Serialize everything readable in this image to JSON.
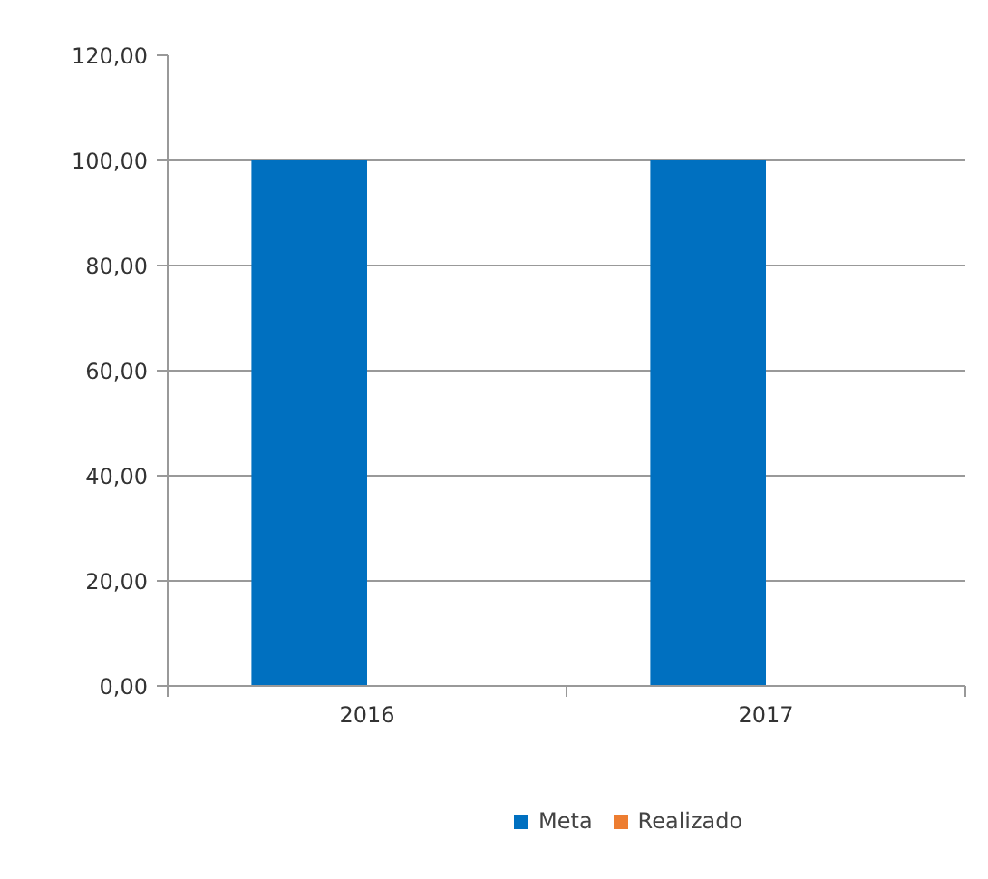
{
  "chart_data": {
    "type": "bar",
    "categories": [
      "2016",
      "2017"
    ],
    "series": [
      {
        "name": "Meta",
        "color": "#0070c0",
        "values": [
          100,
          100
        ]
      },
      {
        "name": "Realizado",
        "color": "#ed7d31",
        "values": [
          null,
          null
        ]
      }
    ],
    "ylim": [
      0,
      120
    ],
    "yticks": [
      {
        "value": 0,
        "label": "0,00"
      },
      {
        "value": 20,
        "label": "20,00"
      },
      {
        "value": 40,
        "label": "40,00"
      },
      {
        "value": 60,
        "label": "60,00"
      },
      {
        "value": 80,
        "label": "80,00"
      },
      {
        "value": 100,
        "label": "100,00"
      },
      {
        "value": 120,
        "label": "120,00"
      }
    ],
    "grid": "y",
    "legend": "bottom"
  }
}
